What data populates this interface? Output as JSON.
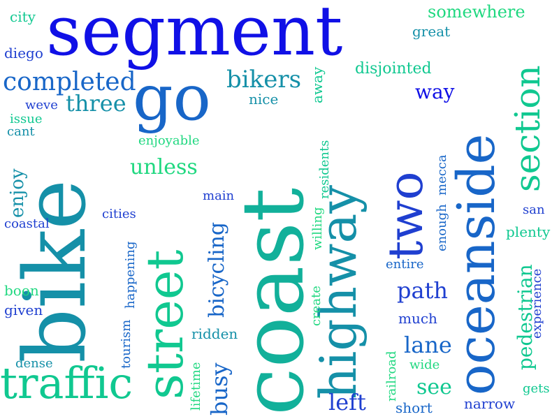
{
  "palette": {
    "blue": "#1010e6",
    "royal": "#1f3fd0",
    "azure": "#1866c8",
    "teal": "#1590a8",
    "sea": "#12b09a",
    "mint": "#10c890",
    "spring": "#20d880"
  },
  "words": [
    "segment",
    "coast",
    "bike",
    "oceanside",
    "street",
    "highway",
    "go",
    "traffic",
    "two",
    "section",
    "completed",
    "three",
    "bikers",
    "unless",
    "pedestrian",
    "somewhere",
    "disjointed",
    "way",
    "path",
    "lane",
    "left",
    "see",
    "bicycling",
    "busy",
    "enjoy",
    "great",
    "city",
    "diego",
    "weve",
    "nice",
    "away",
    "issue",
    "cant",
    "enjoyable",
    "residents",
    "mecca",
    "main",
    "cities",
    "coastal",
    "san",
    "plenty",
    "willing",
    "enough",
    "entire",
    "happening",
    "boon",
    "given",
    "create",
    "tourism",
    "experience",
    "much",
    "ridden",
    "dense",
    "railroad",
    "wide",
    "gets",
    "short",
    "narrow",
    "lifetime"
  ]
}
